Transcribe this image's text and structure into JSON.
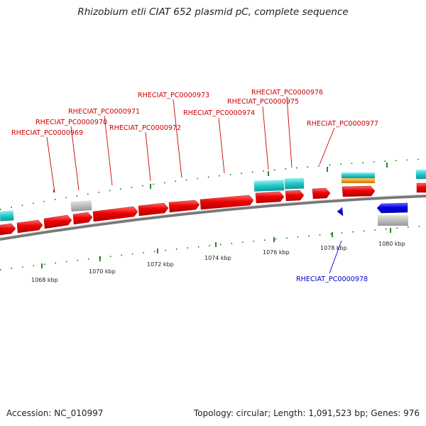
{
  "title": "Rhizobium etli CIAT 652 plasmid pC, complete sequence",
  "footer": {
    "accession": "Accession: NC_010997",
    "summary": "Topology: circular; Length: 1,091,523 bp; Genes: 976"
  },
  "colors": {
    "forward_gene": "#ee0000",
    "reverse_gene": "#0000ee",
    "label_forward": "#cc0000",
    "label_reverse": "#0000cc",
    "feature_cyan": "#22c8c8",
    "feature_orange": "#f0a020",
    "feature_gray": "#bdbdbd",
    "backbone": "#888888",
    "tick": "#117711"
  },
  "ticks": [
    "1068 kbp",
    "1070 kbp",
    "1072 kbp",
    "1074 kbp",
    "1076 kbp",
    "1078 kbp",
    "1080 kbp"
  ],
  "gene_labels": [
    {
      "id": "RHECIAT_PC0000969",
      "strand": "forward"
    },
    {
      "id": "RHECIAT_PC0000970",
      "strand": "forward"
    },
    {
      "id": "RHECIAT_PC0000971",
      "strand": "forward"
    },
    {
      "id": "RHECIAT_PC0000972",
      "strand": "forward"
    },
    {
      "id": "RHECIAT_PC0000973",
      "strand": "forward"
    },
    {
      "id": "RHECIAT_PC0000974",
      "strand": "forward"
    },
    {
      "id": "RHECIAT_PC0000975",
      "strand": "forward"
    },
    {
      "id": "RHECIAT_PC0000976",
      "strand": "forward"
    },
    {
      "id": "RHECIAT_PC0000977",
      "strand": "forward"
    },
    {
      "id": "RHECIAT_PC0000978",
      "strand": "reverse"
    }
  ]
}
